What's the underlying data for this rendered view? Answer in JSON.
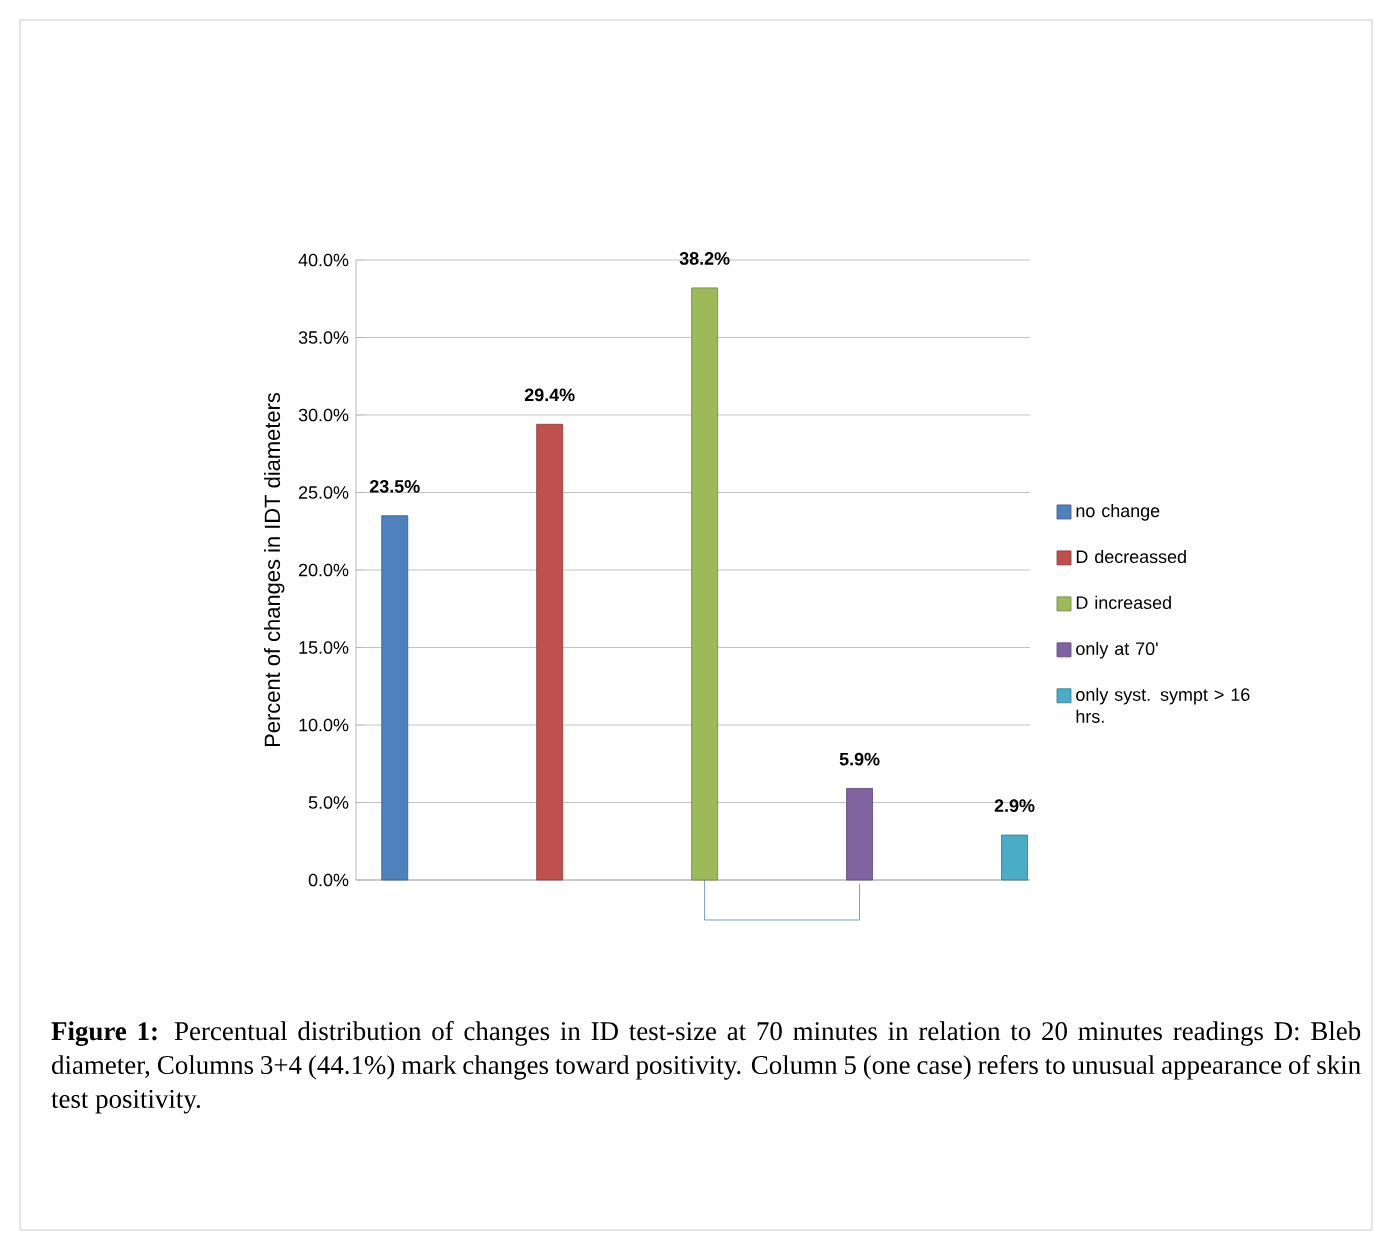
{
  "chart_data": {
    "type": "bar",
    "ylabel": "Percent of changes in IDT diameters",
    "categories": [
      null,
      null,
      null,
      null,
      null
    ],
    "series": [
      {
        "name": "no change",
        "color": "#4f81bd",
        "values": [
          23.5,
          null,
          null,
          null,
          null
        ],
        "value_labels": [
          "23.5%",
          null,
          null,
          null,
          null
        ]
      },
      {
        "name": "D decreassed",
        "color": "#c0504d",
        "values": [
          null,
          29.4,
          null,
          null,
          null
        ],
        "value_labels": [
          null,
          "29.4%",
          null,
          null,
          null
        ]
      },
      {
        "name": "D increased",
        "color": "#9bbb59",
        "values": [
          null,
          null,
          38.2,
          null,
          null
        ],
        "value_labels": [
          null,
          null,
          "38.2%",
          null,
          null
        ]
      },
      {
        "name": "only at 70'",
        "color": "#8064a2",
        "values": [
          null,
          null,
          null,
          5.9,
          null
        ],
        "value_labels": [
          null,
          null,
          null,
          "5.9%",
          null
        ]
      },
      {
        "name": "only syst. sympt > 16 hrs.",
        "color": "#4bacc6",
        "values": [
          null,
          null,
          null,
          null,
          2.9
        ],
        "value_labels": [
          null,
          null,
          null,
          null,
          "2.9%"
        ]
      }
    ],
    "ylim": [
      0,
      40
    ],
    "yticks": [
      {
        "value": 0,
        "label": "0.0%"
      },
      {
        "value": 5,
        "label": "5.0%"
      },
      {
        "value": 10,
        "label": "10.0%"
      },
      {
        "value": 15,
        "label": "15.0%"
      },
      {
        "value": 20,
        "label": "20.0%"
      },
      {
        "value": 25,
        "label": "25.0%"
      },
      {
        "value": 30,
        "label": "30.0%"
      },
      {
        "value": 35,
        "label": "35.0%"
      },
      {
        "value": 40,
        "label": "40.0%"
      }
    ],
    "grid": "y",
    "legend": "right",
    "annotations": [
      "**Figure 1:** Percentual distribution of changes in ID test-size at 70 minutes in relation to 20 minutes readings D: Bleb diameter, Columns 3+4 (44.1%) mark changes toward positivity. Column 5 (one case) refers to unusual appearance of skin test positivity."
    ]
  }
}
